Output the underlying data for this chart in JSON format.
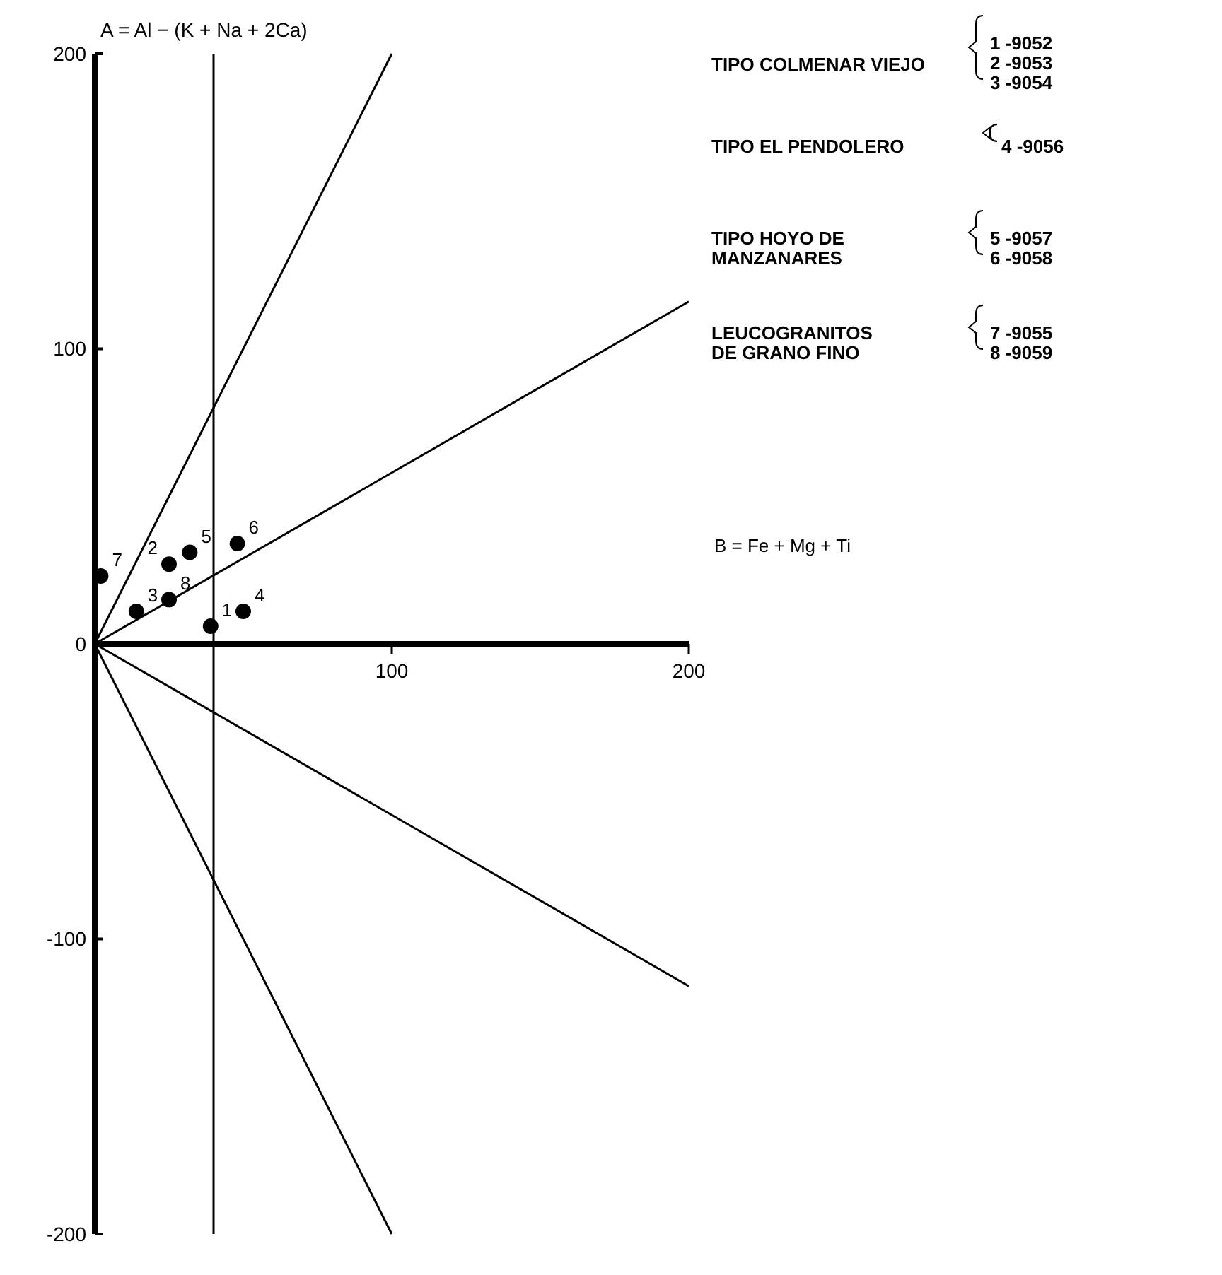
{
  "chart_data": {
    "type": "scatter",
    "xlabel": "B = Fe + Mg + Ti",
    "ylabel": "A = Al − (K + Na + 2Ca)",
    "xlim": [
      0,
      200
    ],
    "ylim": [
      -200,
      200
    ],
    "xticks": [
      100,
      200
    ],
    "yticks": [
      -200,
      -100,
      0,
      100,
      200
    ],
    "grid": false,
    "series": [
      {
        "color": "#000000",
        "marker": "circle",
        "x": [
          39,
          25,
          14,
          50,
          32,
          48,
          2,
          25
        ],
        "values": [
          6,
          27,
          11,
          11,
          31,
          34,
          23,
          15
        ]
      },
      {
        "type": "line",
        "color": "#000000",
        "marker": "none",
        "x": [
          0,
          100
        ],
        "values": [
          0,
          200
        ]
      },
      {
        "type": "line",
        "color": "#000000",
        "marker": "none",
        "x": [
          0,
          200
        ],
        "values": [
          0,
          116
        ]
      },
      {
        "type": "line",
        "color": "#000000",
        "marker": "none",
        "x": [
          0,
          200
        ],
        "values": [
          0,
          -116
        ]
      },
      {
        "type": "line",
        "color": "#000000",
        "marker": "none",
        "x": [
          0,
          100
        ],
        "values": [
          0,
          -200
        ]
      }
    ],
    "ref_lines": [
      {
        "axis": "x",
        "value": 40
      }
    ],
    "annotations": [
      {
        "text": "1",
        "x": 39,
        "y": 6
      },
      {
        "text": "2",
        "x": 25,
        "y": 27
      },
      {
        "text": "3",
        "x": 14,
        "y": 11
      },
      {
        "text": "4",
        "x": 50,
        "y": 11
      },
      {
        "text": "5",
        "x": 32,
        "y": 31
      },
      {
        "text": "6",
        "x": 48,
        "y": 34
      },
      {
        "text": "7",
        "x": 2,
        "y": 23
      },
      {
        "text": "8",
        "x": 25,
        "y": 15
      },
      "TIPO COLMENAR VIEJO",
      "1 -9052",
      "2 -9053",
      "3 -9054",
      "TIPO EL PENDOLERO",
      "4 -9056",
      "TIPO HOYO DE",
      "MANZANARES",
      "5 -9057",
      "6 -9058",
      "LEUCOGRANITOS",
      "DE GRANO FINO",
      "7 -9055",
      "8 -9059"
    ]
  }
}
